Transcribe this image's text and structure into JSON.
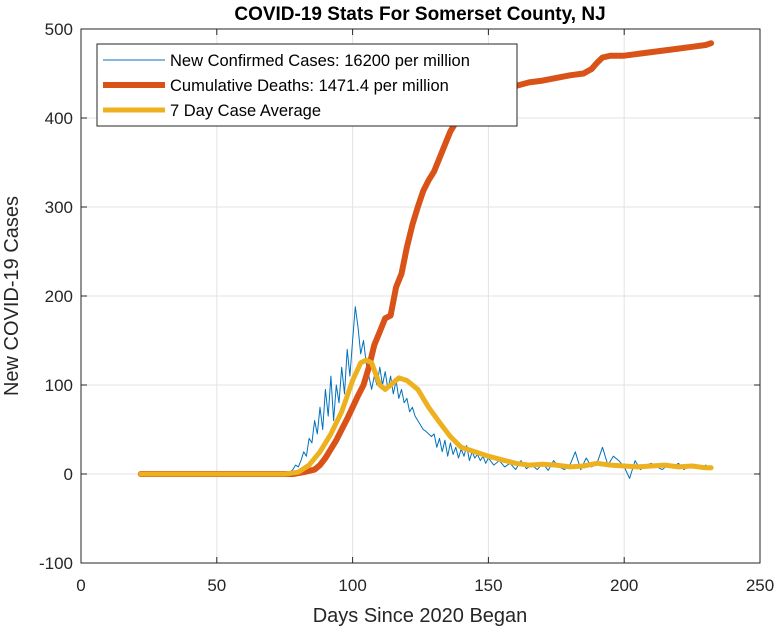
{
  "chart_data": {
    "type": "line",
    "title": "COVID-19 Stats For Somerset County, NJ",
    "xlabel": "Days Since 2020 Began",
    "ylabel": "New COVID-19 Cases",
    "xlim": [
      0,
      250
    ],
    "ylim": [
      -100,
      500
    ],
    "xticks": [
      0,
      50,
      100,
      150,
      200,
      250
    ],
    "yticks": [
      -100,
      0,
      100,
      200,
      300,
      400,
      500
    ],
    "xtick_labels": [
      "0",
      "50",
      "100",
      "150",
      "200",
      "250"
    ],
    "ytick_labels": [
      "-100",
      "0",
      "100",
      "200",
      "300",
      "400",
      "500"
    ],
    "grid": true,
    "legend_position": "top-left",
    "series": [
      {
        "name": "New Confirmed Cases: 16200 per million",
        "color": "#0072BD",
        "x": [
          22,
          70,
          75,
          77,
          78,
          79,
          80,
          81,
          82,
          83,
          84,
          85,
          86,
          87,
          88,
          89,
          90,
          91,
          92,
          93,
          94,
          95,
          96,
          97,
          98,
          99,
          100,
          101,
          102,
          103,
          104,
          105,
          106,
          107,
          108,
          109,
          110,
          111,
          112,
          113,
          114,
          115,
          116,
          117,
          118,
          119,
          120,
          121,
          122,
          123,
          124,
          125,
          126,
          127,
          128,
          129,
          130,
          131,
          132,
          133,
          134,
          135,
          136,
          137,
          138,
          139,
          140,
          141,
          142,
          143,
          144,
          145,
          146,
          147,
          148,
          149,
          150,
          152,
          154,
          156,
          158,
          160,
          162,
          164,
          166,
          168,
          170,
          172,
          174,
          176,
          178,
          180,
          182,
          184,
          186,
          188,
          190,
          192,
          194,
          196,
          198,
          200,
          202,
          204,
          206,
          208,
          210,
          212,
          214,
          216,
          218,
          220,
          222,
          224,
          226,
          228,
          230,
          232
        ],
        "y": [
          0,
          0,
          0,
          2,
          5,
          10,
          8,
          15,
          25,
          20,
          40,
          35,
          60,
          45,
          75,
          50,
          95,
          65,
          110,
          60,
          100,
          80,
          120,
          90,
          140,
          110,
          150,
          188,
          165,
          135,
          150,
          125,
          110,
          95,
          110,
          100,
          120,
          100,
          115,
          95,
          110,
          90,
          105,
          85,
          95,
          80,
          85,
          70,
          75,
          65,
          60,
          55,
          50,
          48,
          45,
          42,
          45,
          30,
          40,
          25,
          38,
          20,
          35,
          22,
          30,
          18,
          28,
          20,
          32,
          15,
          25,
          18,
          22,
          15,
          20,
          12,
          18,
          10,
          15,
          8,
          12,
          5,
          15,
          6,
          10,
          5,
          12,
          4,
          15,
          8,
          5,
          10,
          25,
          5,
          18,
          8,
          12,
          30,
          10,
          20,
          15,
          8,
          -5,
          15,
          5,
          10,
          12,
          8,
          5,
          10,
          8,
          12,
          5,
          10,
          8,
          6,
          10,
          5
        ]
      },
      {
        "name": "Cumulative Deaths: 1471.4 per million",
        "color": "#D95319",
        "x": [
          22,
          75,
          78,
          82,
          86,
          88,
          90,
          92,
          94,
          96,
          98,
          100,
          102,
          104,
          106,
          108,
          110,
          112,
          114,
          116,
          118,
          120,
          122,
          124,
          126,
          128,
          130,
          132,
          134,
          136,
          138,
          140,
          142,
          145,
          148,
          150,
          153,
          156,
          160,
          165,
          170,
          175,
          180,
          185,
          188,
          190,
          192,
          195,
          200,
          205,
          210,
          215,
          220,
          225,
          230,
          232
        ],
        "y": [
          0,
          0,
          0,
          2,
          5,
          10,
          18,
          28,
          38,
          50,
          62,
          75,
          88,
          100,
          120,
          145,
          160,
          175,
          178,
          210,
          225,
          255,
          280,
          300,
          318,
          330,
          340,
          355,
          370,
          385,
          395,
          402,
          410,
          418,
          422,
          425,
          428,
          432,
          436,
          440,
          442,
          445,
          448,
          450,
          455,
          462,
          468,
          470,
          470,
          472,
          474,
          476,
          478,
          480,
          482,
          484
        ]
      },
      {
        "name": "7 Day Case Average",
        "color": "#EDB120",
        "x": [
          22,
          75,
          80,
          84,
          88,
          92,
          96,
          100,
          103,
          105,
          107,
          110,
          112,
          114,
          117,
          120,
          124,
          128,
          132,
          136,
          140,
          145,
          150,
          155,
          160,
          165,
          170,
          175,
          180,
          185,
          190,
          195,
          200,
          205,
          210,
          215,
          220,
          225,
          230,
          232
        ],
        "y": [
          0,
          0,
          2,
          10,
          25,
          45,
          70,
          105,
          125,
          128,
          125,
          100,
          95,
          100,
          108,
          105,
          95,
          75,
          58,
          42,
          30,
          25,
          20,
          16,
          12,
          10,
          11,
          10,
          8,
          9,
          12,
          10,
          9,
          8,
          9,
          10,
          8,
          9,
          7,
          7
        ]
      }
    ]
  }
}
